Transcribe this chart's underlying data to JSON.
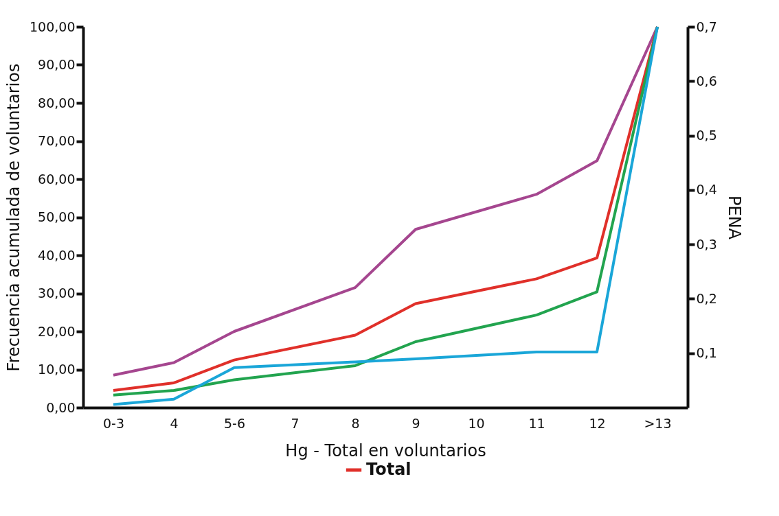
{
  "chart_data": {
    "type": "line",
    "xlabel": "Hg - Total en voluntarios",
    "ylabel": "Frecuencia acumulada de voluntarios",
    "y2label": "PENA",
    "categories": [
      "0-3",
      "4",
      "5-6",
      "7",
      "8",
      "9",
      "10",
      "11",
      "12",
      ">13"
    ],
    "series": [
      {
        "color": "#a5468f",
        "values": [
          8.5,
          11.8,
          20,
          null,
          31.5,
          46.8,
          null,
          56,
          64.8,
          100
        ]
      },
      {
        "name": "Total",
        "color": "#e0302a",
        "values": [
          4.5,
          6.5,
          12.5,
          null,
          19,
          27.3,
          null,
          33.8,
          39.3,
          100
        ]
      },
      {
        "color": "#22a44f",
        "values": [
          3.3,
          4.5,
          7.3,
          null,
          11,
          17.3,
          null,
          24.3,
          30.4,
          100
        ]
      },
      {
        "color": "#1aa6d8",
        "values": [
          0.8,
          2.2,
          10.5,
          null,
          12,
          12.8,
          null,
          14.6,
          14.6,
          100
        ]
      }
    ],
    "ylim": [
      0,
      100
    ],
    "yticks": [
      {
        "value": 0,
        "label": "0,00"
      },
      {
        "value": 10,
        "label": "10,00"
      },
      {
        "value": 20,
        "label": "20,00"
      },
      {
        "value": 30,
        "label": "30,00"
      },
      {
        "value": 40,
        "label": "40,00"
      },
      {
        "value": 50,
        "label": "50,00"
      },
      {
        "value": 60,
        "label": "60,00"
      },
      {
        "value": 70,
        "label": "70,00"
      },
      {
        "value": 80,
        "label": "80,00"
      },
      {
        "value": 90,
        "label": "90,00"
      },
      {
        "value": 100,
        "label": "100,00"
      }
    ],
    "y2lim": [
      0,
      0.7
    ],
    "y2ticks": [
      {
        "value": 0.1,
        "label": "0,1"
      },
      {
        "value": 0.2,
        "label": "0,2"
      },
      {
        "value": 0.3,
        "label": "0,3"
      },
      {
        "value": 0.4,
        "label": "0,4"
      },
      {
        "value": 0.5,
        "label": "0,5"
      },
      {
        "value": 0.6,
        "label": "0,6"
      },
      {
        "value": 0.7,
        "label": "0,7"
      }
    ],
    "grid": false,
    "legend": "bottom",
    "marker": "none",
    "line_style": "solid"
  }
}
